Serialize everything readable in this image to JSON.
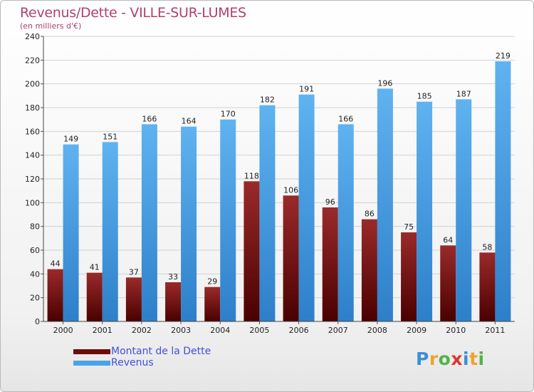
{
  "header": {
    "title": "Revenus/Dette - VILLE-SUR-LUMES",
    "subtitle": "(en milliers d'€)"
  },
  "legend": {
    "items": [
      {
        "label": "Montant de la Dette",
        "color": "#6e0a0a"
      },
      {
        "label": "Revenus",
        "color": "#4aa3ea"
      }
    ]
  },
  "logo": {
    "text": "Proxiti",
    "letter_colors": [
      "#3a8fd6",
      "#f0a22e",
      "#52b24a",
      "#e2342b",
      "#3a8fd6",
      "#f0a22e",
      "#52b24a"
    ]
  },
  "chart_data": {
    "type": "bar",
    "title": "Revenus/Dette - VILLE-SUR-LUMES",
    "ylabel": "(en milliers d'€)",
    "xlabel": "",
    "categories": [
      "2000",
      "2001",
      "2002",
      "2003",
      "2004",
      "2005",
      "2006",
      "2007",
      "2008",
      "2009",
      "2010",
      "2011"
    ],
    "series": [
      {
        "name": "Montant de la Dette",
        "color": "#6e0a0a",
        "values": [
          44,
          41,
          37,
          33,
          29,
          118,
          106,
          96,
          86,
          75,
          64,
          58
        ]
      },
      {
        "name": "Revenus",
        "color": "#4aa3ea",
        "values": [
          149,
          151,
          166,
          164,
          170,
          182,
          191,
          166,
          196,
          185,
          187,
          219
        ]
      }
    ],
    "ylim": [
      0,
      240
    ],
    "yticks": [
      0,
      20,
      40,
      60,
      80,
      100,
      120,
      140,
      160,
      180,
      200,
      220,
      240
    ],
    "grid": true,
    "legend_position": "bottom-left"
  }
}
